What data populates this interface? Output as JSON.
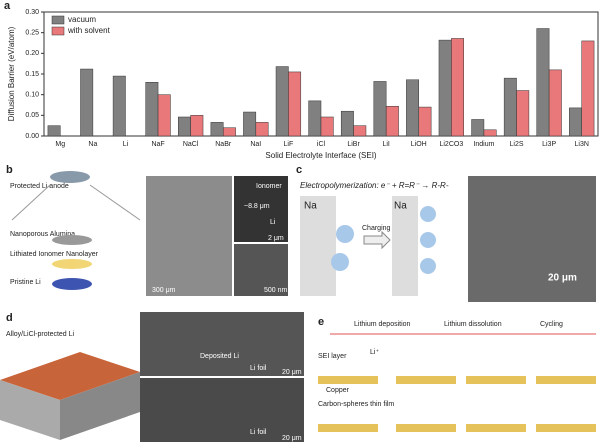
{
  "chart_data": {
    "type": "bar",
    "xlabel": "Solid Electrolyte Interface (SEI)",
    "ylabel": "Diffusion Barrier (eV/atom)",
    "categories": [
      "Mg",
      "Na",
      "Li",
      "NaF",
      "NaCl",
      "NaBr",
      "NaI",
      "LiF",
      "iCl",
      "LiBr",
      "LiI",
      "LiOH",
      "Li2CO3",
      "Indium",
      "Li2S",
      "Li3P",
      "Li3N"
    ],
    "series": [
      {
        "name": "vacuum",
        "color": "#808080",
        "values": [
          0.025,
          0.162,
          0.145,
          0.13,
          0.046,
          0.033,
          0.058,
          0.168,
          0.085,
          0.06,
          0.132,
          0.136,
          0.232,
          0.04,
          0.14,
          0.26,
          0.068
        ]
      },
      {
        "name": "with solvent",
        "color": "#e8787a",
        "values": [
          null,
          null,
          null,
          0.1,
          0.05,
          0.02,
          0.033,
          0.155,
          0.046,
          0.025,
          0.072,
          0.07,
          0.236,
          0.015,
          0.11,
          0.16,
          0.23
        ]
      }
    ],
    "ylim": [
      0,
      0.3
    ],
    "yticks": [
      {
        "value": 0,
        "label": "0.00"
      },
      {
        "value": 0.05,
        "label": "0.05"
      },
      {
        "value": 0.1,
        "label": "0.10"
      },
      {
        "value": 0.15,
        "label": "0.15"
      },
      {
        "value": 0.2,
        "label": "0.20"
      },
      {
        "value": 0.25,
        "label": "0.25"
      },
      {
        "value": 0.3,
        "label": "0.30"
      }
    ],
    "legend": "upper left"
  },
  "panel_labels": [
    "a",
    "b",
    "c",
    "d",
    "e"
  ],
  "panel_b": {
    "stack_title": "Protected Li anode",
    "layers": [
      "Nanoporous Alumina",
      "Lithiated Ionomer Nanolayer",
      "Pristine Li"
    ],
    "scale_main": "300 μm",
    "ionomer": "Ionomer",
    "thickness": "~8.8 μm",
    "li": "Li",
    "scale_top": "2 μm",
    "scale_bottom": "500 nm"
  },
  "panel_c": {
    "equation": "Electropolymerization: e⁻ + R=R⁻ → R-R-",
    "na": "Na",
    "charging": "Charging",
    "scale": "20 μm"
  },
  "panel_d": {
    "title": "Alloy/LiCl-protected Li",
    "deposited": "Deposited Li",
    "foil": "Li foil",
    "scale": "20 μm"
  },
  "panel_e": {
    "steps": [
      "Lithium deposition",
      "Lithium dissolution",
      "Cycling"
    ],
    "sei": "SEI layer",
    "copper": "Copper",
    "carbon": "Carbon-spheres thin film",
    "ion": "Li⁺"
  }
}
